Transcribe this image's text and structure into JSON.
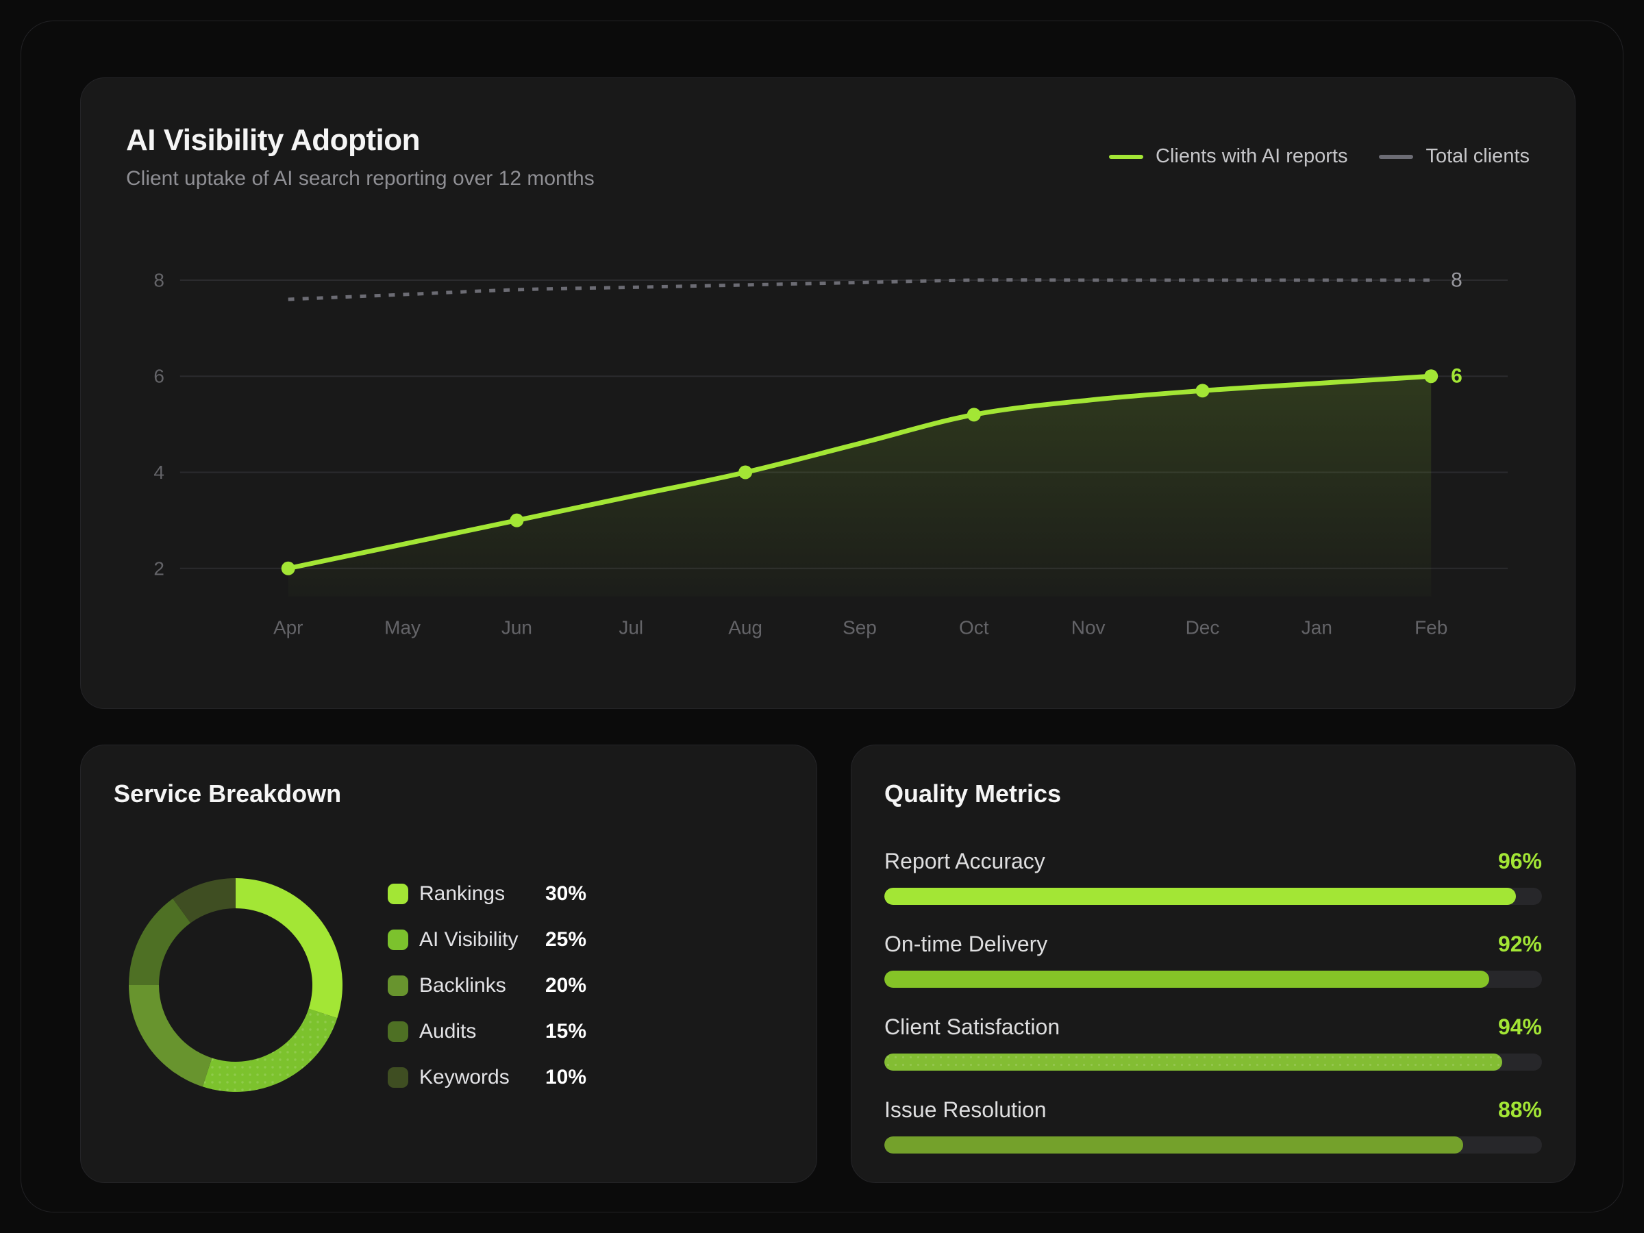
{
  "page": {
    "background": "#0b0b0b",
    "frame_border": "#222225",
    "card_background": "#191919",
    "accent": "#a3e635"
  },
  "chart_data": [
    {
      "type": "line",
      "title": "AI Visibility Adoption",
      "subtitle": "Client uptake of AI search reporting over 12 months",
      "x": [
        "Apr",
        "May",
        "Jun",
        "Jul",
        "Aug",
        "Sep",
        "Oct",
        "Nov",
        "Dec",
        "Jan",
        "Feb"
      ],
      "series": [
        {
          "name": "Clients with AI reports",
          "color": "#a3e635",
          "line_style": "solid",
          "area_fill": true,
          "values": [
            2,
            2.5,
            3,
            3.5,
            4,
            4.6,
            5.2,
            5.5,
            5.7,
            5.85,
            6
          ],
          "marker_months": [
            "Apr",
            "Jun",
            "Aug",
            "Oct",
            "Dec",
            "Feb"
          ],
          "end_label": "6",
          "end_label_color": "#a3e635"
        },
        {
          "name": "Total clients",
          "color": "#6c6c74",
          "line_style": "dashed",
          "area_fill": false,
          "values": [
            7.6,
            7.7,
            7.8,
            7.85,
            7.9,
            7.95,
            8,
            8,
            8,
            8,
            8
          ],
          "marker_months": [],
          "end_label": "8",
          "end_label_color": "#98989e"
        }
      ],
      "yticks": [
        2,
        4,
        6,
        8
      ],
      "ylim": [
        2,
        8
      ],
      "grid": true,
      "legend_position": "top-right",
      "tick_color": "#646468",
      "grid_color": "#2b2b2e"
    },
    {
      "type": "pie",
      "title": "Service Breakdown",
      "donut": true,
      "unit": "%",
      "segments": [
        {
          "label": "Rankings",
          "value": 30,
          "display": "30%",
          "color": "#a3e635",
          "dotted": false
        },
        {
          "label": "AI Visibility",
          "value": 25,
          "display": "25%",
          "color": "#7cc22d",
          "dotted": true
        },
        {
          "label": "Backlinks",
          "value": 20,
          "display": "20%",
          "color": "#68942e",
          "dotted": false
        },
        {
          "label": "Audits",
          "value": 15,
          "display": "15%",
          "color": "#4e7024",
          "dotted": false
        },
        {
          "label": "Keywords",
          "value": 10,
          "display": "10%",
          "color": "#3f4e22",
          "dotted": false
        }
      ]
    },
    {
      "type": "bar",
      "title": "Quality Metrics",
      "orientation": "horizontal",
      "unit": "%",
      "value_color": "#a3e635",
      "track_color": "#27272a",
      "metrics": [
        {
          "label": "Report Accuracy",
          "value": 96,
          "display": "96%",
          "color": "#a3e635",
          "dotted": false
        },
        {
          "label": "On-time Delivery",
          "value": 92,
          "display": "92%",
          "color": "#85c427",
          "dotted": false
        },
        {
          "label": "Client Satisfaction",
          "value": 94,
          "display": "94%",
          "color": "#83bd33",
          "dotted": true
        },
        {
          "label": "Issue Resolution",
          "value": 88,
          "display": "88%",
          "color": "#74a12b",
          "dotted": false
        }
      ]
    }
  ]
}
